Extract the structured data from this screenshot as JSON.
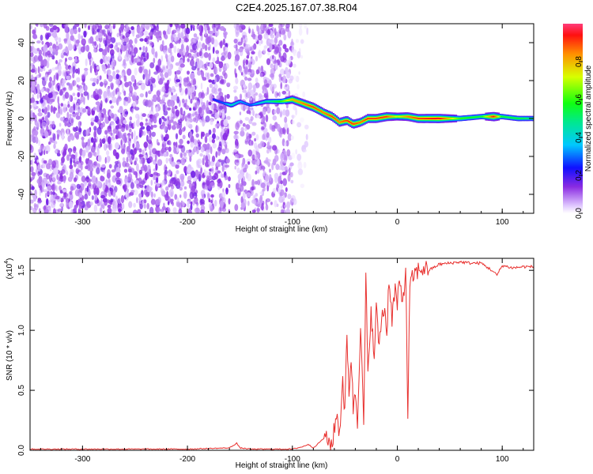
{
  "page_title": "C2E4.2025.167.07.38.R04",
  "chart_data": [
    {
      "type": "heatmap",
      "xlabel": "Height of straight line (km)",
      "ylabel": "Frequency (Hz)",
      "xlim": [
        -350,
        130
      ],
      "ylim": [
        -50,
        50
      ],
      "x_ticks": [
        "-300",
        "-200",
        "-100",
        "0",
        "100"
      ],
      "x_tick_values": [
        -300,
        -200,
        -100,
        0,
        100
      ],
      "y_ticks": [
        "40",
        "20",
        "0",
        "-20",
        "-40"
      ],
      "y_tick_values": [
        40,
        20,
        0,
        -20,
        -40
      ],
      "colorbar": {
        "label": "Normalized spectral amplitude",
        "ticks": [
          "0.0",
          "0.2",
          "0.4",
          "0.6",
          "0.8"
        ],
        "tick_values": [
          0.0,
          0.2,
          0.4,
          0.6,
          0.8
        ],
        "range": [
          0,
          1
        ],
        "colormap": "rainbow"
      },
      "noise_regions": [
        {
          "x": [
            -350,
            -160
          ],
          "level": 0.12
        },
        {
          "x": [
            -155,
            -100
          ],
          "level": 0.1
        },
        {
          "x": [
            -100,
            -85
          ],
          "level": 0.03
        }
      ],
      "signal_ridge": {
        "x": [
          -175,
          -165,
          -158,
          -150,
          -140,
          -125,
          -110,
          -100,
          -90,
          -80,
          -70,
          -62,
          -55,
          -48,
          -42,
          -35,
          -28,
          -20,
          -10,
          0,
          10,
          20,
          40,
          60,
          80,
          92,
          100,
          115,
          130
        ],
        "frequency": [
          10,
          8,
          7,
          9,
          7,
          9,
          9,
          10,
          8,
          6,
          3,
          1,
          -2,
          -1,
          -3,
          -2,
          0,
          0,
          1,
          1,
          1,
          0,
          0,
          0,
          1,
          1,
          1,
          0,
          0
        ],
        "amplitude": [
          0.25,
          0.3,
          0.45,
          0.35,
          0.3,
          0.45,
          0.6,
          0.8,
          0.85,
          0.9,
          0.85,
          0.9,
          0.85,
          0.9,
          0.9,
          0.85,
          0.9,
          0.9,
          0.9,
          0.7,
          0.85,
          0.9,
          0.95,
          0.6,
          0.55,
          0.95,
          0.55,
          0.55,
          0.5
        ]
      }
    },
    {
      "type": "line",
      "xlabel": "Height of straight line (km)",
      "ylabel": "SNR (10 * v/v)",
      "y_multiplier": "(x10",
      "y_multiplier_exp": "4",
      "xlim": [
        -350,
        130
      ],
      "ylim": [
        0,
        1.6
      ],
      "x_ticks": [
        "-300",
        "-200",
        "-100",
        "0",
        "100"
      ],
      "x_tick_values": [
        -300,
        -200,
        -100,
        0,
        100
      ],
      "y_ticks": [
        "0.0",
        "0.5",
        "1.0",
        "1.5"
      ],
      "y_tick_values": [
        0.0,
        0.5,
        1.0,
        1.5
      ],
      "series": [
        {
          "color": "#e8302e",
          "x": [
            -350,
            -300,
            -250,
            -200,
            -160,
            -153,
            -150,
            -140,
            -120,
            -100,
            -90,
            -85,
            -80,
            -70,
            -62,
            -58,
            -55,
            -52,
            -50,
            -48,
            -46,
            -44,
            -42,
            -40,
            -38,
            -35,
            -32,
            -30,
            -28,
            -25,
            -22,
            -20,
            -18,
            -15,
            -12,
            -10,
            -8,
            -5,
            -2,
            0,
            2,
            5,
            8,
            10,
            12,
            15,
            20,
            25,
            30,
            40,
            50,
            60,
            70,
            80,
            90,
            95,
            100,
            110,
            120,
            130
          ],
          "values": [
            0.01,
            0.01,
            0.01,
            0.01,
            0.02,
            0.06,
            0.02,
            0.01,
            0.01,
            0.01,
            0.03,
            0.05,
            0.02,
            0.1,
            0.05,
            0.3,
            0.15,
            0.6,
            0.3,
            0.95,
            0.5,
            0.78,
            0.35,
            0.5,
            0.25,
            1.05,
            0.2,
            1.45,
            0.6,
            1.2,
            0.7,
            1.28,
            0.85,
            1.1,
            1.2,
            0.95,
            1.45,
            1.1,
            1.35,
            1.2,
            1.4,
            1.25,
            1.48,
            0.3,
            1.35,
            1.45,
            1.5,
            1.52,
            1.5,
            1.55,
            1.56,
            1.57,
            1.56,
            1.56,
            1.5,
            1.46,
            1.54,
            1.52,
            1.53,
            1.53
          ]
        }
      ]
    }
  ]
}
